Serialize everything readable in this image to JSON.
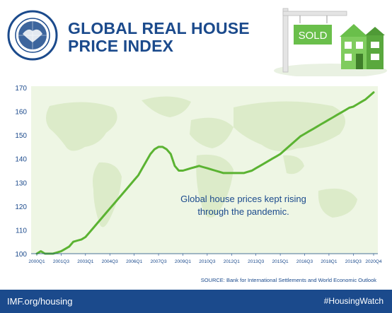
{
  "header": {
    "title_line1": "GLOBAL REAL HOUSE",
    "title_line2": "PRICE INDEX",
    "logo_name": "imf-seal-logo",
    "sign_text": "SOLD"
  },
  "colors": {
    "brand_blue": "#1b4a8c",
    "line_green": "#5bb332",
    "map_green": "#dcebc9",
    "band_green": "#eef6e4",
    "house_green": "#6abf4b"
  },
  "chart_data": {
    "type": "line",
    "title": "GLOBAL REAL HOUSE PRICE INDEX",
    "xlabel": "",
    "ylabel": "",
    "ylim": [
      100,
      170
    ],
    "yticks": [
      100,
      110,
      120,
      130,
      140,
      150,
      160,
      170
    ],
    "xtick_labels": [
      "2000Q1",
      "2001Q3",
      "2003Q1",
      "2004Q3",
      "2006Q1",
      "2007Q3",
      "2009Q1",
      "2010Q3",
      "2012Q1",
      "2013Q3",
      "2015Q1",
      "2016Q3",
      "2018Q1",
      "2019Q3",
      "2020Q4"
    ],
    "grid": false,
    "legend": "none",
    "series": [
      {
        "name": "",
        "x": [
          "2000Q1",
          "2000Q2",
          "2000Q3",
          "2000Q4",
          "2001Q1",
          "2001Q2",
          "2001Q3",
          "2001Q4",
          "2002Q1",
          "2002Q2",
          "2002Q3",
          "2002Q4",
          "2003Q1",
          "2003Q2",
          "2003Q3",
          "2003Q4",
          "2004Q1",
          "2004Q2",
          "2004Q3",
          "2004Q4",
          "2005Q1",
          "2005Q2",
          "2005Q3",
          "2005Q4",
          "2006Q1",
          "2006Q2",
          "2006Q3",
          "2006Q4",
          "2007Q1",
          "2007Q2",
          "2007Q3",
          "2007Q4",
          "2008Q1",
          "2008Q2",
          "2008Q3",
          "2008Q4",
          "2009Q1",
          "2009Q2",
          "2009Q3",
          "2009Q4",
          "2010Q1",
          "2010Q2",
          "2010Q3",
          "2010Q4",
          "2011Q1",
          "2011Q2",
          "2011Q3",
          "2011Q4",
          "2012Q1",
          "2012Q2",
          "2012Q3",
          "2012Q4",
          "2013Q1",
          "2013Q2",
          "2013Q3",
          "2013Q4",
          "2014Q1",
          "2014Q2",
          "2014Q3",
          "2014Q4",
          "2015Q1",
          "2015Q2",
          "2015Q3",
          "2015Q4",
          "2016Q1",
          "2016Q2",
          "2016Q3",
          "2016Q4",
          "2017Q1",
          "2017Q2",
          "2017Q3",
          "2017Q4",
          "2018Q1",
          "2018Q2",
          "2018Q3",
          "2018Q4",
          "2019Q1",
          "2019Q2",
          "2019Q3",
          "2019Q4",
          "2020Q1",
          "2020Q2",
          "2020Q3",
          "2020Q4"
        ],
        "values": [
          100,
          101,
          100,
          100,
          100,
          100.5,
          101,
          102,
          103,
          105,
          105.5,
          106,
          107,
          109,
          111,
          113,
          115,
          117,
          119,
          121,
          123,
          125,
          127,
          129,
          131,
          133,
          136,
          139,
          142,
          144,
          145,
          145,
          144,
          142,
          137,
          135,
          135,
          135.5,
          136,
          136.5,
          137,
          136.5,
          136,
          135.5,
          135,
          134.5,
          134,
          134,
          134,
          134,
          134,
          134,
          134.5,
          135,
          136,
          137,
          138,
          139,
          140,
          141,
          142,
          143.5,
          145,
          146.5,
          148,
          149.5,
          150.5,
          151.5,
          152.5,
          153.5,
          154.5,
          155.5,
          156.5,
          157.5,
          158.5,
          159.5,
          160.5,
          161.5,
          162,
          163,
          164,
          165,
          166.5,
          168
        ]
      }
    ],
    "annotations": [
      {
        "text_line1": "Global house prices kept rising",
        "text_line2": "through the pandemic."
      }
    ],
    "source": "SOURCE: Bank for International Settlements and World Economic Outlook"
  },
  "footer": {
    "url": "IMF.org/housing",
    "hashtag": "#HousingWatch"
  }
}
